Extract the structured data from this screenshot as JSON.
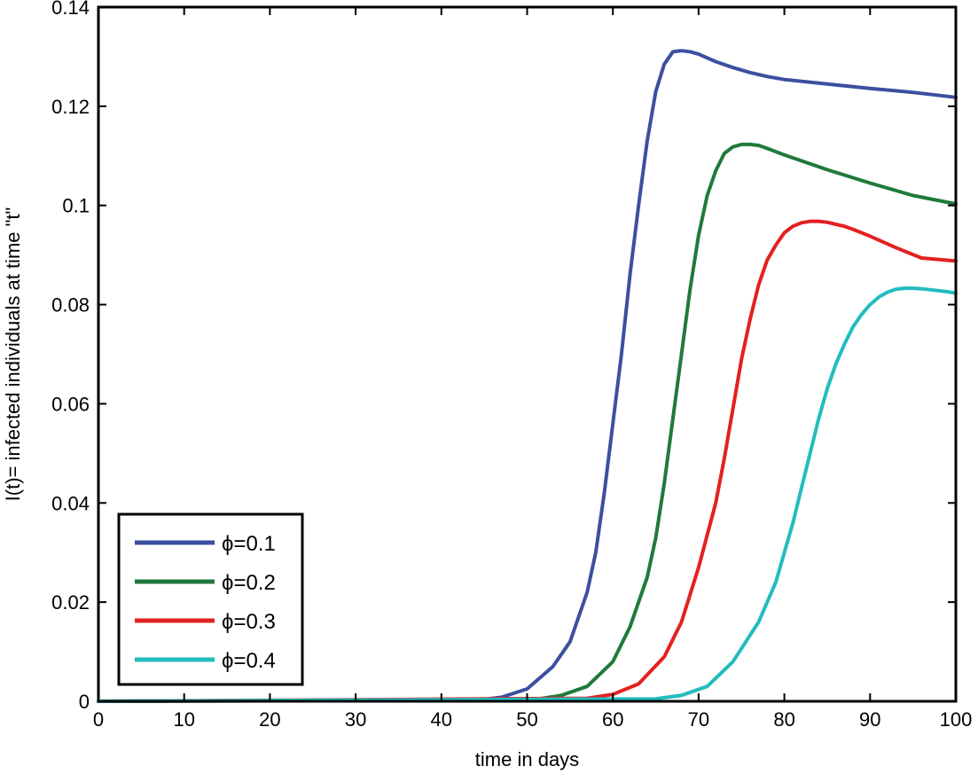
{
  "chart_data": {
    "type": "line",
    "title": "",
    "xlabel": "time in days",
    "ylabel": "I(t)= infected individuals at time \"t\"",
    "xlim": [
      0,
      100
    ],
    "ylim": [
      0,
      0.14
    ],
    "xticks": [
      0,
      10,
      20,
      30,
      40,
      50,
      60,
      70,
      80,
      90,
      100
    ],
    "xtick_labels": [
      "0",
      "10",
      "20",
      "30",
      "40",
      "50",
      "60",
      "70",
      "80",
      "90",
      "100"
    ],
    "yticks": [
      0,
      0.02,
      0.04,
      0.06,
      0.08,
      0.1,
      0.12,
      0.14
    ],
    "ytick_labels": [
      "0",
      "0.02",
      "0.04",
      "0.06",
      "0.08",
      "0.1",
      "0.12",
      "0.14"
    ],
    "grid": false,
    "legend_position": "bottom-left",
    "series": [
      {
        "name": "ϕ=0.1",
        "color": "#3c4fa0",
        "x": [
          0,
          44,
          47,
          50,
          53,
          55,
          57,
          58,
          59,
          60,
          61,
          62,
          63,
          64,
          65,
          66,
          67,
          68,
          69,
          70,
          72,
          74,
          76,
          78,
          80,
          85,
          90,
          95,
          100
        ],
        "y": [
          0,
          0.0002,
          0.0008,
          0.0025,
          0.007,
          0.012,
          0.022,
          0.03,
          0.042,
          0.056,
          0.07,
          0.086,
          0.1,
          0.113,
          0.123,
          0.1285,
          0.131,
          0.1312,
          0.131,
          0.1305,
          0.129,
          0.1278,
          0.1268,
          0.126,
          0.1254,
          0.1245,
          0.1236,
          0.1228,
          0.1218
        ]
      },
      {
        "name": "ϕ=0.2",
        "color": "#1f7a3a",
        "x": [
          0,
          51,
          54,
          57,
          60,
          62,
          64,
          65,
          66,
          67,
          68,
          69,
          70,
          71,
          72,
          73,
          74,
          75,
          76,
          77,
          78,
          80,
          85,
          90,
          95,
          100
        ],
        "y": [
          0,
          0.0004,
          0.0012,
          0.003,
          0.008,
          0.015,
          0.025,
          0.033,
          0.044,
          0.057,
          0.07,
          0.083,
          0.094,
          0.102,
          0.107,
          0.1105,
          0.1118,
          0.1123,
          0.1123,
          0.1121,
          0.1115,
          0.1102,
          0.1072,
          0.1045,
          0.102,
          0.1003
        ]
      },
      {
        "name": "ϕ=0.3",
        "color": "#e32120",
        "x": [
          0,
          57,
          60,
          63,
          66,
          68,
          70,
          72,
          73,
          74,
          75,
          76,
          77,
          78,
          79,
          80,
          81,
          82,
          83,
          84,
          85,
          86,
          87,
          88,
          90,
          93,
          96,
          100
        ],
        "y": [
          0,
          0.0006,
          0.0014,
          0.0035,
          0.009,
          0.016,
          0.027,
          0.04,
          0.049,
          0.059,
          0.069,
          0.077,
          0.084,
          0.089,
          0.092,
          0.0945,
          0.0958,
          0.0965,
          0.0968,
          0.0968,
          0.0966,
          0.0962,
          0.0958,
          0.0952,
          0.0938,
          0.0915,
          0.0894,
          0.0888
        ]
      },
      {
        "name": "ϕ=0.4",
        "color": "#22bcbf",
        "x": [
          0,
          65,
          68,
          71,
          74,
          77,
          79,
          80,
          81,
          82,
          83,
          84,
          85,
          86,
          87,
          88,
          89,
          90,
          91,
          92,
          93,
          94,
          95,
          96,
          97,
          98,
          99,
          100
        ],
        "y": [
          0,
          0.0005,
          0.0012,
          0.003,
          0.008,
          0.016,
          0.024,
          0.03,
          0.036,
          0.043,
          0.05,
          0.057,
          0.063,
          0.068,
          0.072,
          0.0755,
          0.078,
          0.08,
          0.0815,
          0.0825,
          0.0831,
          0.0833,
          0.0833,
          0.0832,
          0.083,
          0.0828,
          0.0826,
          0.0823
        ]
      }
    ]
  }
}
